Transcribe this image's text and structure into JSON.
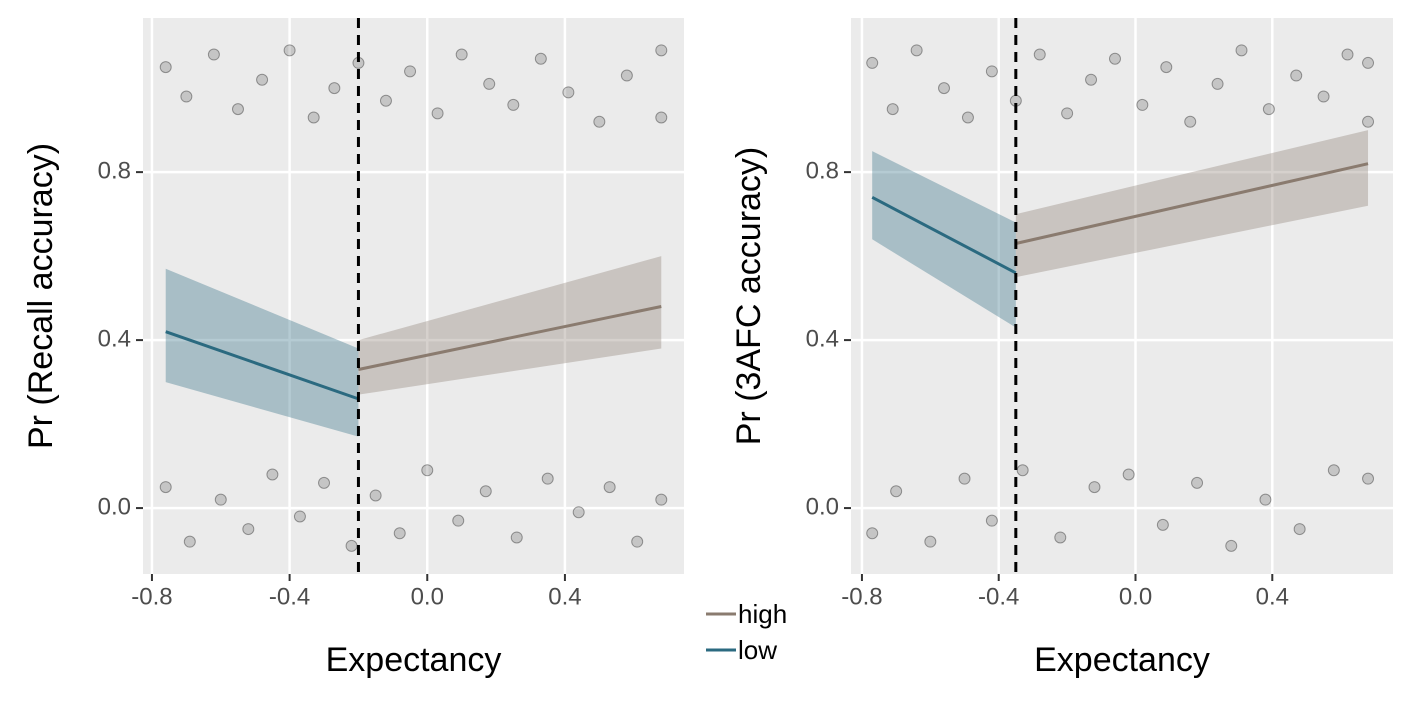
{
  "chart_data": [
    {
      "type": "line",
      "xlabel": "Expectancy",
      "ylabel": "Pr (Recall accuracy)",
      "xlim": [
        -0.826,
        0.746
      ],
      "ylim": [
        -0.157,
        1.167
      ],
      "xticks": [
        -0.8,
        -0.4,
        {
          "value": 0,
          "label": "0.0"
        },
        0.4
      ],
      "yticks": [
        {
          "value": 0,
          "label": "0.0"
        },
        0.4,
        0.8
      ],
      "grid": true,
      "threshold": -0.2,
      "series": [
        {
          "name": "high",
          "color": "#8a7b6f",
          "x": [
            -0.2,
            0.68
          ],
          "values": [
            0.33,
            0.48
          ],
          "lower": [
            0.27,
            0.38
          ],
          "upper": [
            0.4,
            0.6
          ]
        },
        {
          "name": "low",
          "color": "#2b6a80",
          "x": [
            -0.76,
            -0.2
          ],
          "values": [
            0.42,
            0.26
          ],
          "lower": [
            0.3,
            0.17
          ],
          "upper": [
            0.57,
            0.38
          ]
        }
      ],
      "points": {
        "x": [
          -0.76,
          -0.7,
          -0.62,
          -0.55,
          -0.48,
          -0.4,
          -0.33,
          -0.27,
          -0.2,
          -0.12,
          -0.05,
          0.03,
          0.1,
          0.18,
          0.25,
          0.33,
          0.41,
          0.5,
          0.58,
          0.68,
          0.68,
          -0.76,
          -0.69,
          -0.6,
          -0.52,
          -0.45,
          -0.37,
          -0.3,
          -0.22,
          -0.15,
          -0.08,
          0.0,
          0.09,
          0.17,
          0.26,
          0.35,
          0.44,
          0.53,
          0.61,
          0.68
        ],
        "y": [
          1.05,
          0.98,
          1.08,
          0.95,
          1.02,
          1.09,
          0.93,
          1.0,
          1.06,
          0.97,
          1.04,
          0.94,
          1.08,
          1.01,
          0.96,
          1.07,
          0.99,
          0.92,
          1.03,
          1.09,
          0.93,
          0.05,
          -0.08,
          0.02,
          -0.05,
          0.08,
          -0.02,
          0.06,
          -0.09,
          0.03,
          -0.06,
          0.09,
          -0.03,
          0.04,
          -0.07,
          0.07,
          -0.01,
          0.05,
          -0.08,
          0.02
        ]
      }
    },
    {
      "type": "line",
      "xlabel": "Expectancy",
      "ylabel": "Pr (3AFC accuracy)",
      "xlim": [
        -0.832,
        0.753
      ],
      "ylim": [
        -0.157,
        1.167
      ],
      "xticks": [
        -0.8,
        -0.4,
        {
          "value": 0,
          "label": "0.0"
        },
        0.4
      ],
      "yticks": [
        {
          "value": 0,
          "label": "0.0"
        },
        0.4,
        0.8
      ],
      "grid": true,
      "threshold": -0.35,
      "series": [
        {
          "name": "high",
          "color": "#8a7b6f",
          "x": [
            -0.35,
            0.68
          ],
          "values": [
            0.63,
            0.82
          ],
          "lower": [
            0.55,
            0.72
          ],
          "upper": [
            0.7,
            0.9
          ]
        },
        {
          "name": "low",
          "color": "#2b6a80",
          "x": [
            -0.77,
            -0.35
          ],
          "values": [
            0.74,
            0.56
          ],
          "lower": [
            0.64,
            0.43
          ],
          "upper": [
            0.85,
            0.68
          ]
        }
      ],
      "points": {
        "x": [
          -0.77,
          -0.71,
          -0.64,
          -0.56,
          -0.49,
          -0.42,
          -0.35,
          -0.28,
          -0.2,
          -0.13,
          -0.06,
          0.02,
          0.09,
          0.16,
          0.24,
          0.31,
          0.39,
          0.47,
          0.55,
          0.62,
          0.68,
          0.68,
          -0.77,
          -0.7,
          -0.6,
          -0.5,
          -0.42,
          -0.33,
          -0.22,
          -0.12,
          -0.02,
          0.08,
          0.18,
          0.28,
          0.38,
          0.48,
          0.58,
          0.68
        ],
        "y": [
          1.06,
          0.95,
          1.09,
          1.0,
          0.93,
          1.04,
          0.97,
          1.08,
          0.94,
          1.02,
          1.07,
          0.96,
          1.05,
          0.92,
          1.01,
          1.09,
          0.95,
          1.03,
          0.98,
          1.08,
          0.92,
          1.06,
          -0.06,
          0.04,
          -0.08,
          0.07,
          -0.03,
          0.09,
          -0.07,
          0.05,
          0.08,
          -0.04,
          0.06,
          -0.09,
          0.02,
          -0.05,
          0.09,
          0.07
        ]
      }
    }
  ]
}
